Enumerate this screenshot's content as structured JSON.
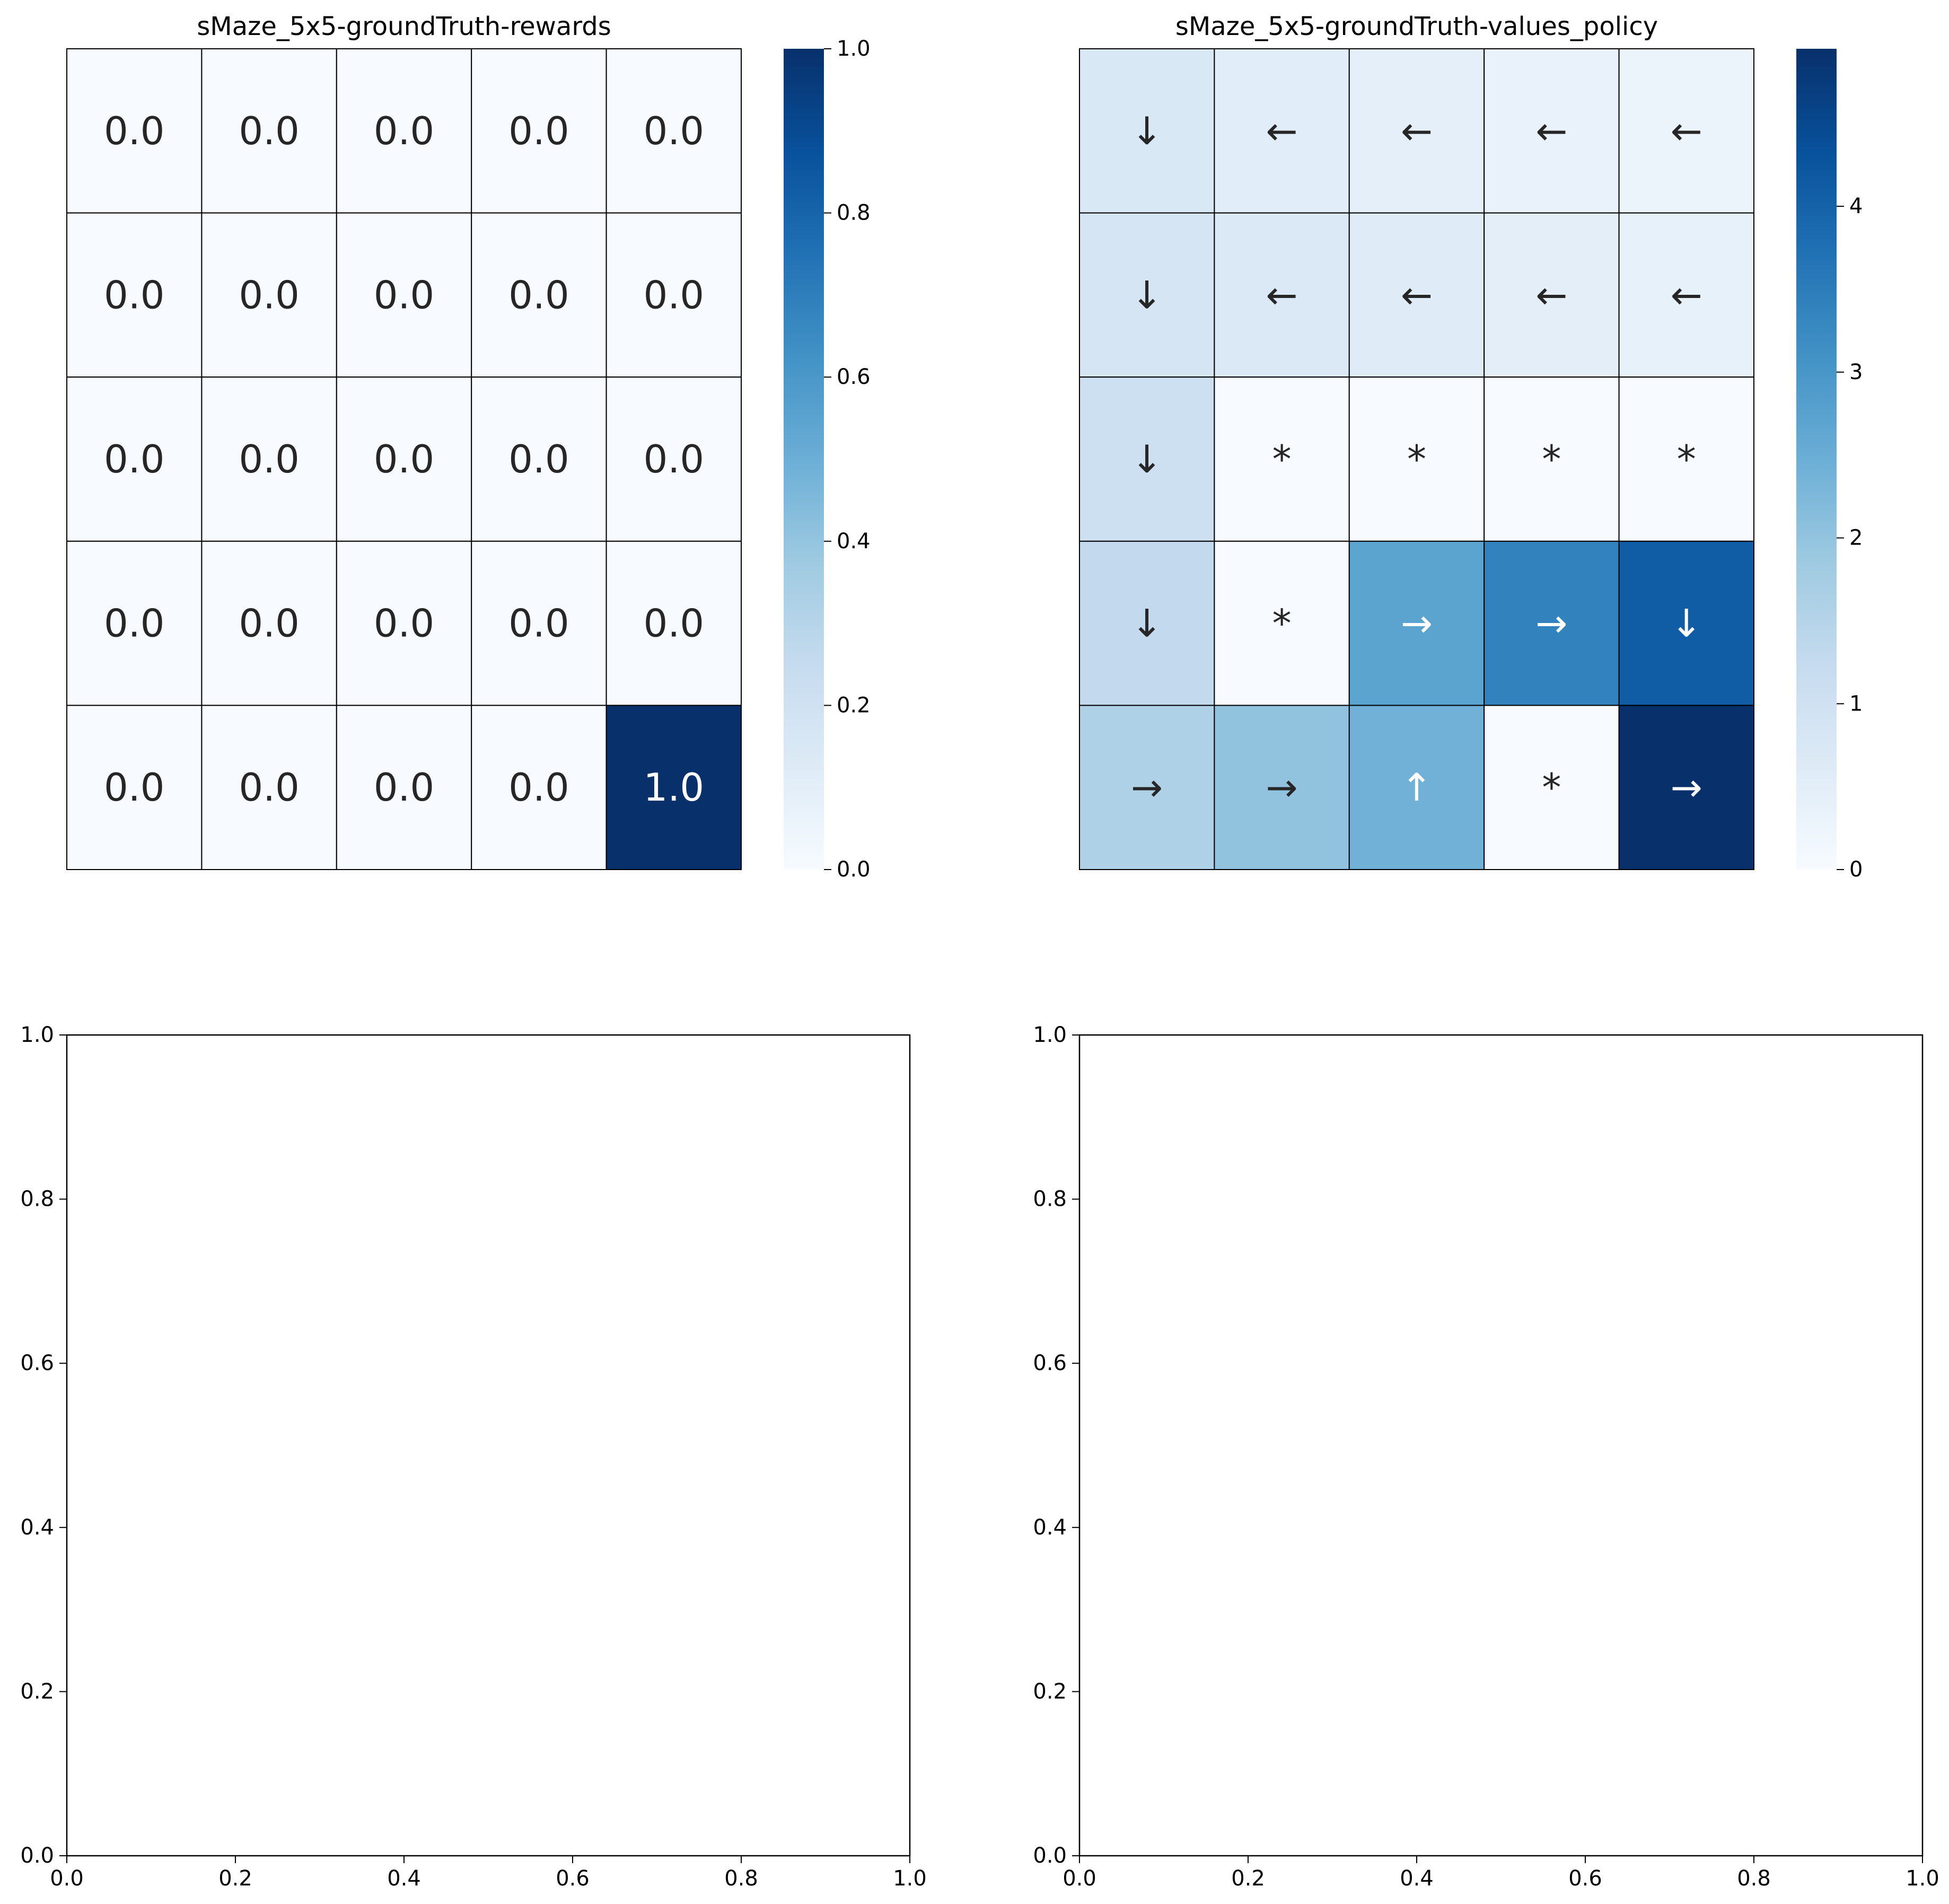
{
  "colormap": {
    "name": "Blues",
    "stops": [
      "#f7fbff",
      "#deebf7",
      "#c6dbef",
      "#9ecae1",
      "#6baed6",
      "#4292c6",
      "#2171b5",
      "#08519c",
      "#08306b"
    ]
  },
  "chart_data": [
    {
      "type": "heatmap",
      "title": "sMaze_5x5-groundTruth-rewards",
      "rows": 5,
      "cols": 5,
      "values": [
        [
          0.0,
          0.0,
          0.0,
          0.0,
          0.0
        ],
        [
          0.0,
          0.0,
          0.0,
          0.0,
          0.0
        ],
        [
          0.0,
          0.0,
          0.0,
          0.0,
          0.0
        ],
        [
          0.0,
          0.0,
          0.0,
          0.0,
          0.0
        ],
        [
          0.0,
          0.0,
          0.0,
          0.0,
          1.0
        ]
      ],
      "annotations": [
        [
          "0.0",
          "0.0",
          "0.0",
          "0.0",
          "0.0"
        ],
        [
          "0.0",
          "0.0",
          "0.0",
          "0.0",
          "0.0"
        ],
        [
          "0.0",
          "0.0",
          "0.0",
          "0.0",
          "0.0"
        ],
        [
          "0.0",
          "0.0",
          "0.0",
          "0.0",
          "0.0"
        ],
        [
          "0.0",
          "0.0",
          "0.0",
          "0.0",
          "1.0"
        ]
      ],
      "colorbar": {
        "vmin": 0.0,
        "vmax": 1.0,
        "ticks": [
          "0.0",
          "0.2",
          "0.4",
          "0.6",
          "0.8",
          "1.0"
        ],
        "tick_values": [
          0,
          0.2,
          0.4,
          0.6,
          0.8,
          1.0
        ]
      },
      "grid": true
    },
    {
      "type": "heatmap",
      "title": "sMaze_5x5-groundTruth-values_policy",
      "rows": 5,
      "cols": 5,
      "values": [
        [
          0.75,
          0.55,
          0.45,
          0.35,
          0.3
        ],
        [
          0.85,
          0.7,
          0.6,
          0.5,
          0.4
        ],
        [
          1.05,
          0.0,
          0.0,
          0.0,
          0.0
        ],
        [
          1.3,
          0.0,
          2.7,
          3.4,
          4.1
        ],
        [
          1.6,
          2.0,
          2.4,
          0.0,
          4.95
        ]
      ],
      "annotations": [
        [
          "↓",
          "←",
          "←",
          "←",
          "←"
        ],
        [
          "↓",
          "←",
          "←",
          "←",
          "←"
        ],
        [
          "↓",
          "*",
          "*",
          "*",
          "*"
        ],
        [
          "↓",
          "*",
          "→",
          "→",
          "↓"
        ],
        [
          "→",
          "→",
          "↑",
          "*",
          "→"
        ]
      ],
      "colorbar": {
        "vmin": 0.0,
        "vmax": 4.95,
        "ticks": [
          "0",
          "1",
          "2",
          "3",
          "4"
        ],
        "tick_values": [
          0,
          1,
          2,
          3,
          4
        ]
      },
      "grid": true
    },
    {
      "type": "scatter",
      "title": "",
      "series": [],
      "xlim": [
        0.0,
        1.0
      ],
      "ylim": [
        0.0,
        1.0
      ],
      "x_ticks": [
        "0.0",
        "0.2",
        "0.4",
        "0.6",
        "0.8",
        "1.0"
      ],
      "y_ticks": [
        "0.0",
        "0.2",
        "0.4",
        "0.6",
        "0.8",
        "1.0"
      ],
      "tick_values": [
        0,
        0.2,
        0.4,
        0.6,
        0.8,
        1.0
      ]
    },
    {
      "type": "scatter",
      "title": "",
      "series": [],
      "xlim": [
        0.0,
        1.0
      ],
      "ylim": [
        0.0,
        1.0
      ],
      "x_ticks": [
        "0.0",
        "0.2",
        "0.4",
        "0.6",
        "0.8",
        "1.0"
      ],
      "y_ticks": [
        "0.0",
        "0.2",
        "0.4",
        "0.6",
        "0.8",
        "1.0"
      ],
      "tick_values": [
        0,
        0.2,
        0.4,
        0.6,
        0.8,
        1.0
      ]
    }
  ]
}
